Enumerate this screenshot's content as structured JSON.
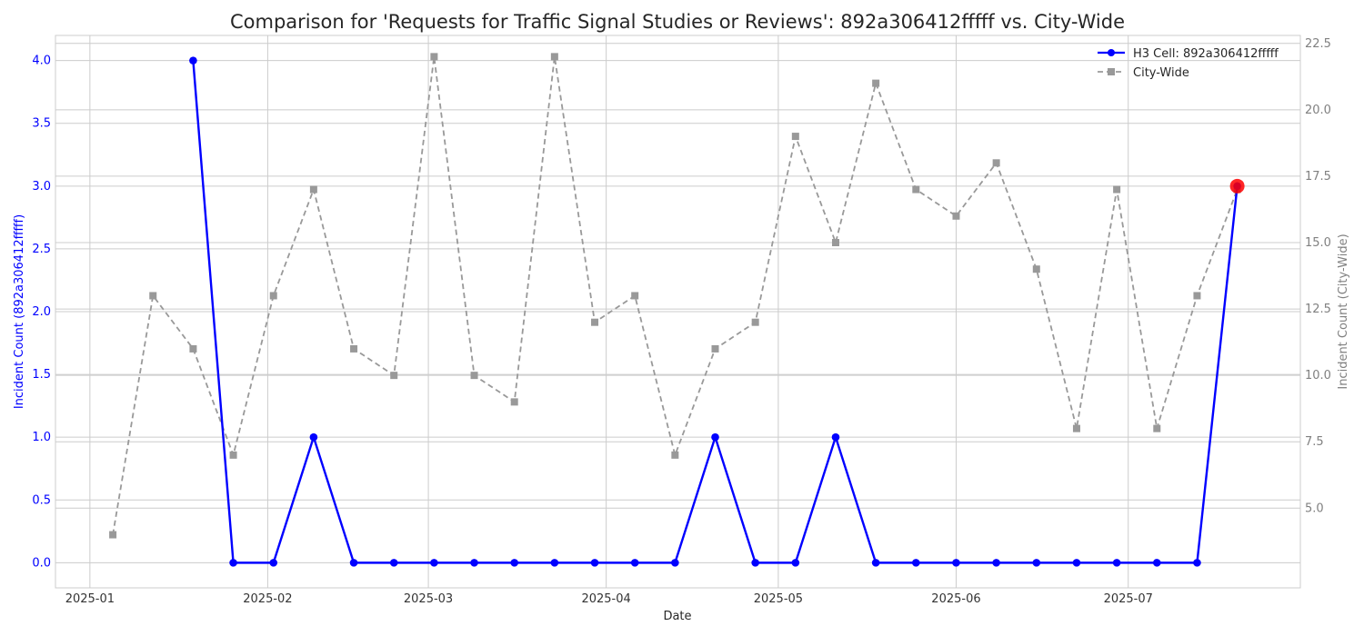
{
  "chart_data": {
    "type": "line",
    "title": "Comparison for 'Requests for Traffic Signal Studies or Reviews': 892a306412fffff vs. City-Wide",
    "xlabel": "Date",
    "ylabel_left": "Incident Count (892a306412fffff)",
    "ylabel_right": "Incident Count (City-Wide)",
    "ylim_left": [
      -0.2,
      4.2
    ],
    "ylim_right": [
      2.0,
      22.8
    ],
    "xlim": [
      "2024-12-26",
      "2025-07-31"
    ],
    "grid": true,
    "legend_position": "top-right",
    "x_ticks": [
      "2025-01",
      "2025-02",
      "2025-03",
      "2025-04",
      "2025-05",
      "2025-06",
      "2025-07"
    ],
    "y_ticks_left": [
      "0.0",
      "0.5",
      "1.0",
      "1.5",
      "2.0",
      "2.5",
      "3.0",
      "3.5",
      "4.0"
    ],
    "y_ticks_right": [
      "5.0",
      "7.5",
      "10.0",
      "12.5",
      "15.0",
      "17.5",
      "20.0",
      "22.5"
    ],
    "colors": {
      "h3": "#0000ff",
      "city": "#999999",
      "highlight": "#ff0000"
    },
    "series": [
      {
        "name": "H3 Cell: 892a306412fffff",
        "axis": "left",
        "x": [
          "2025-01-19",
          "2025-01-26",
          "2025-02-02",
          "2025-02-09",
          "2025-02-16",
          "2025-02-23",
          "2025-03-02",
          "2025-03-09",
          "2025-03-16",
          "2025-03-23",
          "2025-03-30",
          "2025-04-06",
          "2025-04-13",
          "2025-04-20",
          "2025-04-27",
          "2025-05-04",
          "2025-05-11",
          "2025-05-18",
          "2025-05-25",
          "2025-06-01",
          "2025-06-08",
          "2025-06-15",
          "2025-06-22",
          "2025-06-29",
          "2025-07-06",
          "2025-07-13",
          "2025-07-20"
        ],
        "values": [
          4,
          0,
          0,
          1,
          0,
          0,
          0,
          0,
          0,
          0,
          0,
          0,
          0,
          1,
          0,
          0,
          1,
          0,
          0,
          0,
          0,
          0,
          0,
          0,
          0,
          0,
          3
        ]
      },
      {
        "name": "City-Wide",
        "axis": "right",
        "x": [
          "2025-01-05",
          "2025-01-12",
          "2025-01-19",
          "2025-01-26",
          "2025-02-02",
          "2025-02-09",
          "2025-02-16",
          "2025-02-23",
          "2025-03-02",
          "2025-03-09",
          "2025-03-16",
          "2025-03-23",
          "2025-03-30",
          "2025-04-06",
          "2025-04-13",
          "2025-04-20",
          "2025-04-27",
          "2025-05-04",
          "2025-05-11",
          "2025-05-18",
          "2025-05-25",
          "2025-06-01",
          "2025-06-08",
          "2025-06-15",
          "2025-06-22",
          "2025-06-29",
          "2025-07-06",
          "2025-07-13",
          "2025-07-20"
        ],
        "values": [
          4,
          13,
          11,
          7,
          13,
          17,
          11,
          10,
          22,
          10,
          9,
          22,
          12,
          13,
          7,
          11,
          12,
          19,
          15,
          21,
          17,
          16,
          18,
          14,
          8,
          17,
          8,
          13,
          17
        ]
      }
    ],
    "highlight_point": {
      "series": "H3 Cell: 892a306412fffff",
      "x": "2025-07-20",
      "value": 3
    }
  }
}
